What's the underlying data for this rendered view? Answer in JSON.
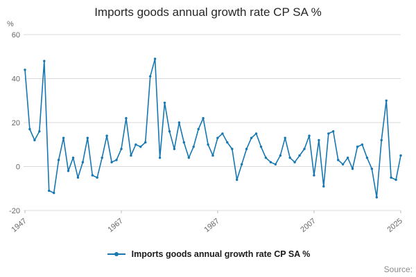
{
  "page": {
    "source_label": "Source:"
  },
  "chart_data": {
    "type": "line",
    "title": "Imports goods annual growth rate CP SA %",
    "xlabel": "",
    "ylabel": "%",
    "ylim": [
      -20,
      60
    ],
    "yticks": [
      60,
      40,
      20,
      0,
      -20
    ],
    "xticks": [
      1947,
      1967,
      1987,
      2007,
      2025
    ],
    "grid": "horizontal",
    "legend_position": "bottom",
    "colors": {
      "line": "#1577b2",
      "gridline": "#d9d9d9",
      "tick_text": "#666666"
    },
    "series": [
      {
        "name": "Imports goods annual growth rate CP SA %",
        "color": "#1577b2",
        "x": [
          1947,
          1948,
          1949,
          1950,
          1951,
          1952,
          1953,
          1954,
          1955,
          1956,
          1957,
          1958,
          1959,
          1960,
          1961,
          1962,
          1963,
          1964,
          1965,
          1966,
          1967,
          1968,
          1969,
          1970,
          1971,
          1972,
          1973,
          1974,
          1975,
          1976,
          1977,
          1978,
          1979,
          1980,
          1981,
          1982,
          1983,
          1984,
          1985,
          1986,
          1987,
          1988,
          1989,
          1990,
          1991,
          1992,
          1993,
          1994,
          1995,
          1996,
          1997,
          1998,
          1999,
          2000,
          2001,
          2002,
          2003,
          2004,
          2005,
          2006,
          2007,
          2008,
          2009,
          2010,
          2011,
          2012,
          2013,
          2014,
          2015,
          2016,
          2017,
          2018,
          2019,
          2020,
          2021,
          2022,
          2023,
          2024,
          2025
        ],
        "values": [
          44,
          17,
          12,
          16,
          48,
          -11,
          -12,
          3,
          13,
          -2,
          4,
          -5,
          2,
          13,
          -4,
          -5,
          4,
          14,
          2,
          3,
          8,
          22,
          5,
          10,
          9,
          11,
          41,
          49,
          4,
          29,
          16,
          8,
          20,
          11,
          4,
          9,
          17,
          22,
          10,
          5,
          13,
          15,
          11,
          8,
          -6,
          1,
          8,
          13,
          15,
          9,
          4,
          2,
          1,
          5,
          13,
          4,
          2,
          5,
          8,
          14,
          -4,
          12,
          -9,
          15,
          16,
          3,
          1,
          4,
          -1,
          9,
          10,
          4,
          -1,
          -14,
          12,
          30,
          -5,
          -6,
          5
        ]
      }
    ]
  }
}
